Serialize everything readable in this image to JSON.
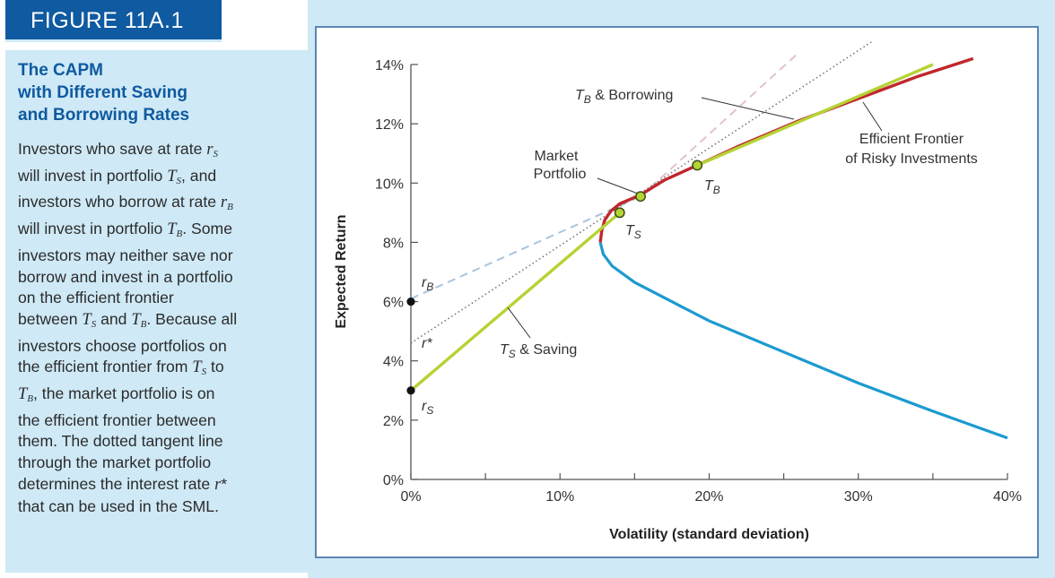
{
  "figure_label": "FIGURE 11A.1",
  "caption": {
    "title_lines": [
      "The CAPM",
      "with Different Saving",
      "and Borrowing Rates"
    ]
  },
  "colors": {
    "panel_bg": "#cfe9f6",
    "tab_bg": "#0f5aa0",
    "title_blue": "#0f5aa0",
    "frontier_red": "#c0272d",
    "frontier_blue": "#1c9ad0",
    "saving_green": "#b5d334",
    "dashed_lb": "#a9c4de",
    "dashed_pink": "#e3c3c3",
    "dotted_gray": "#777777",
    "point_fill": "#b5d334"
  },
  "chart_data": {
    "type": "line",
    "xlabel": "Volatility (standard deviation)",
    "ylabel": "Expected Return",
    "xlim": [
      0,
      40
    ],
    "ylim": [
      0,
      14
    ],
    "x_ticks": [
      "0%",
      "10%",
      "20%",
      "30%",
      "40%"
    ],
    "y_ticks": [
      "0%",
      "2%",
      "4%",
      "6%",
      "8%",
      "10%",
      "12%",
      "14%"
    ],
    "efficient_frontier_upper": [
      [
        12.7,
        8.0
      ],
      [
        12.8,
        8.4
      ],
      [
        13.0,
        8.75
      ],
      [
        13.4,
        9.05
      ],
      [
        14.0,
        9.3
      ],
      [
        15.4,
        9.6
      ],
      [
        17.0,
        10.1
      ],
      [
        19.2,
        10.6
      ],
      [
        22,
        11.25
      ],
      [
        26,
        12.1
      ],
      [
        30,
        12.85
      ],
      [
        34,
        13.6
      ],
      [
        37.7,
        14.2
      ]
    ],
    "efficient_frontier_lower": [
      [
        12.7,
        8.0
      ],
      [
        12.9,
        7.6
      ],
      [
        13.5,
        7.2
      ],
      [
        15,
        6.65
      ],
      [
        17.5,
        6.0
      ],
      [
        20,
        5.35
      ],
      [
        25,
        4.3
      ],
      [
        30,
        3.25
      ],
      [
        35,
        2.3
      ],
      [
        40,
        1.4
      ]
    ],
    "saving_line": [
      [
        0,
        3.0
      ],
      [
        14.0,
        9.0
      ]
    ],
    "borrowing_line": [
      [
        19.2,
        10.6
      ],
      [
        35,
        14.0
      ]
    ],
    "rB_dashed": [
      [
        0,
        6.1
      ],
      [
        15.4,
        9.55
      ]
    ],
    "borrowing_extension_dashed": [
      [
        15.4,
        9.55
      ],
      [
        26,
        14.4
      ]
    ],
    "tangent_dotted": [
      [
        0,
        4.6
      ],
      [
        31,
        14.8
      ]
    ],
    "points": [
      {
        "label": "T_S",
        "x": 14.0,
        "y": 9.0
      },
      {
        "label": "Market Portfolio",
        "x": 15.4,
        "y": 9.55
      },
      {
        "label": "T_B",
        "x": 19.2,
        "y": 10.6
      }
    ],
    "rate_points": [
      {
        "label": "r_B",
        "x": 0,
        "y": 6.0
      },
      {
        "label": "r_S",
        "x": 0,
        "y": 3.0
      }
    ],
    "annotations": {
      "tb_borrowing": {
        "symbol": "T",
        "sub": "B",
        "text": " & Borrowing"
      },
      "ts_saving": {
        "symbol": "T",
        "sub": "S",
        "text": " & Saving"
      },
      "market_portfolio": [
        "Market",
        "Portfolio"
      ],
      "efficient_frontier": [
        "Efficient Frontier",
        "of Risky Investments"
      ],
      "ts_point": {
        "symbol": "T",
        "sub": "S"
      },
      "tb_point": {
        "symbol": "T",
        "sub": "B"
      },
      "rb_label": {
        "symbol": "r",
        "sub": "B"
      },
      "rs_label": {
        "symbol": "r",
        "sub": "S"
      },
      "rstar_label": "r*"
    }
  }
}
